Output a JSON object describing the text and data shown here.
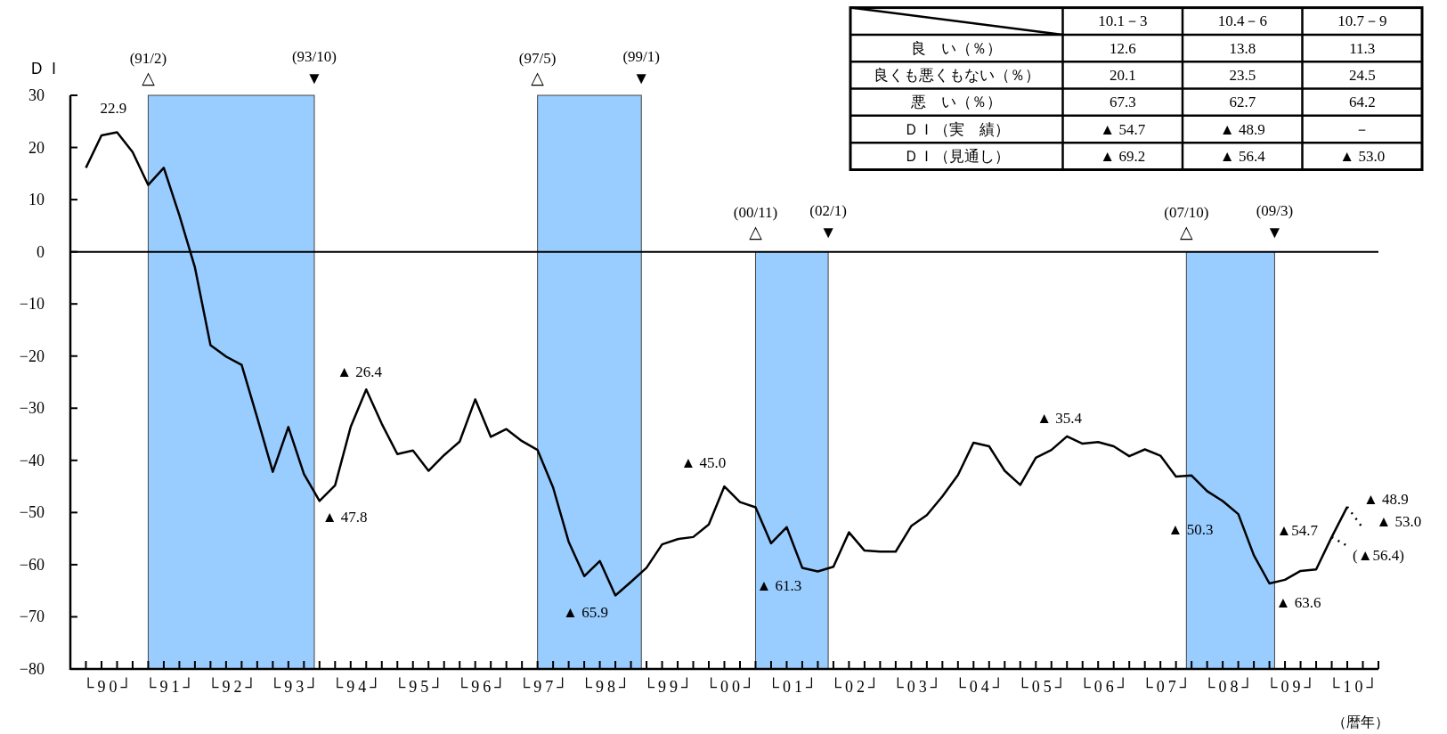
{
  "chart_data": [
    {
      "type": "line",
      "ylabel": "ＤＩ",
      "xlabel": "（暦年）",
      "x": [
        "1990-02",
        "1990-05",
        "1990-08",
        "1990-11",
        "1991-02",
        "1991-05",
        "1991-08",
        "1991-11",
        "1992-02",
        "1992-05",
        "1992-08",
        "1992-11",
        "1993-02",
        "1993-05",
        "1993-08",
        "1993-11",
        "1994-02",
        "1994-05",
        "1994-08",
        "1994-11",
        "1995-02",
        "1995-05",
        "1995-08",
        "1995-11",
        "1996-02",
        "1996-05",
        "1996-08",
        "1996-11",
        "1997-02",
        "1997-05",
        "1997-08",
        "1997-11",
        "1998-02",
        "1998-05",
        "1998-08",
        "1998-11",
        "1999-02",
        "1999-05",
        "1999-08",
        "1999-11",
        "2000-02",
        "2000-05",
        "2000-08",
        "2000-11",
        "2001-02",
        "2001-05",
        "2001-08",
        "2001-11",
        "2002-02",
        "2002-05",
        "2002-08",
        "2002-11",
        "2003-02",
        "2003-05",
        "2003-08",
        "2003-11",
        "2004-02",
        "2004-05",
        "2004-08",
        "2004-11",
        "2005-02",
        "2005-05",
        "2005-08",
        "2005-11",
        "2006-02",
        "2006-05",
        "2006-08",
        "2006-11",
        "2007-02",
        "2007-05",
        "2007-08",
        "2007-11",
        "2008-02",
        "2008-05",
        "2008-08",
        "2008-11",
        "2009-02",
        "2009-05",
        "2009-08",
        "2009-11",
        "2010-02",
        "2010-05"
      ],
      "series": [
        {
          "color": "#000000",
          "line_style": "solid",
          "values": [
            16.1,
            22.3,
            22.9,
            19.1,
            12.8,
            16.1,
            7.0,
            -3.0,
            -17.9,
            -20.1,
            -21.7,
            -31.8,
            -42.2,
            -33.6,
            -42.6,
            -47.8,
            -44.8,
            -33.6,
            -26.4,
            -33.0,
            -38.8,
            -38.1,
            -42.0,
            -39.0,
            -36.4,
            -28.3,
            -35.5,
            -34.0,
            -36.3,
            -38.0,
            -45.2,
            -55.6,
            -62.2,
            -59.3,
            -65.9,
            -63.3,
            -60.6,
            -56.1,
            -55.1,
            -54.7,
            -52.3,
            -45.0,
            -48.0,
            -49.0,
            -55.9,
            -52.8,
            -60.6,
            -61.3,
            -60.4,
            -53.8,
            -57.3,
            -57.5,
            -57.5,
            -52.6,
            -50.5,
            -46.9,
            -42.8,
            -36.6,
            -37.3,
            -42.0,
            -44.7,
            -39.5,
            -38.0,
            -35.4,
            -36.8,
            -36.5,
            -37.3,
            -39.2,
            -37.9,
            -39.1,
            -43.1,
            -42.9,
            -45.9,
            -47.8,
            -50.3,
            -58.2,
            -63.6,
            -62.9,
            -61.2,
            -60.9,
            -54.7,
            -48.9
          ]
        },
        {
          "type": "line",
          "color": "#000000",
          "line_style": "dotted",
          "x": [
            "2010-02",
            "2010-05"
          ],
          "values": [
            -54.7,
            -56.4
          ]
        },
        {
          "type": "line",
          "color": "#000000",
          "line_style": "dotted",
          "x": [
            "2010-05",
            "2010-08"
          ],
          "values": [
            -48.9,
            -53.0
          ]
        }
      ],
      "xlim": [
        "1989-11",
        "2010-11"
      ],
      "ylim": [
        -80,
        30
      ],
      "yticks": [
        -80,
        -70,
        -60,
        -50,
        -40,
        -30,
        -20,
        -10,
        0,
        10,
        20,
        30
      ],
      "xticks": [
        {
          "value": "1990-02",
          "label": null
        },
        {
          "value": "1990-05",
          "label": null
        },
        {
          "value": "1990-06-15",
          "label": "└90┘"
        },
        {
          "value": "1990-08",
          "label": null
        },
        {
          "value": "1990-11",
          "label": null
        },
        {
          "value": "1991-02",
          "label": null
        },
        {
          "value": "1991-05",
          "label": null
        },
        {
          "value": "1991-06-15",
          "label": "└91┘"
        },
        {
          "value": "1991-08",
          "label": null
        },
        {
          "value": "1991-11",
          "label": null
        },
        {
          "value": "1992-02",
          "label": null
        },
        {
          "value": "1992-05",
          "label": null
        },
        {
          "value": "1992-06-15",
          "label": "└92┘"
        },
        {
          "value": "1992-08",
          "label": null
        },
        {
          "value": "1992-11",
          "label": null
        },
        {
          "value": "1993-02",
          "label": null
        },
        {
          "value": "1993-05",
          "label": null
        },
        {
          "value": "1993-06-15",
          "label": "└93┘"
        },
        {
          "value": "1993-08",
          "label": null
        },
        {
          "value": "1993-11",
          "label": null
        },
        {
          "value": "1994-02",
          "label": null
        },
        {
          "value": "1994-05",
          "label": null
        },
        {
          "value": "1994-06-15",
          "label": "└94┘"
        },
        {
          "value": "1994-08",
          "label": null
        },
        {
          "value": "1994-11",
          "label": null
        },
        {
          "value": "1995-02",
          "label": null
        },
        {
          "value": "1995-05",
          "label": null
        },
        {
          "value": "1995-06-15",
          "label": "└95┘"
        },
        {
          "value": "1995-08",
          "label": null
        },
        {
          "value": "1995-11",
          "label": null
        },
        {
          "value": "1996-02",
          "label": null
        },
        {
          "value": "1996-05",
          "label": null
        },
        {
          "value": "1996-06-15",
          "label": "└96┘"
        },
        {
          "value": "1996-08",
          "label": null
        },
        {
          "value": "1996-11",
          "label": null
        },
        {
          "value": "1997-02",
          "label": null
        },
        {
          "value": "1997-05",
          "label": null
        },
        {
          "value": "1997-06-15",
          "label": "└97┘"
        },
        {
          "value": "1997-08",
          "label": null
        },
        {
          "value": "1997-11",
          "label": null
        },
        {
          "value": "1998-02",
          "label": null
        },
        {
          "value": "1998-05",
          "label": null
        },
        {
          "value": "1998-06-15",
          "label": "└98┘"
        },
        {
          "value": "1998-08",
          "label": null
        },
        {
          "value": "1998-11",
          "label": null
        },
        {
          "value": "1999-02",
          "label": null
        },
        {
          "value": "1999-05",
          "label": null
        },
        {
          "value": "1999-06-15",
          "label": "└99┘"
        },
        {
          "value": "1999-08",
          "label": null
        },
        {
          "value": "1999-11",
          "label": null
        },
        {
          "value": "2000-02",
          "label": null
        },
        {
          "value": "2000-05",
          "label": null
        },
        {
          "value": "2000-06-15",
          "label": "└00┘"
        },
        {
          "value": "2000-08",
          "label": null
        },
        {
          "value": "2000-11",
          "label": null
        },
        {
          "value": "2001-02",
          "label": null
        },
        {
          "value": "2001-05",
          "label": null
        },
        {
          "value": "2001-06-15",
          "label": "└01┘"
        },
        {
          "value": "2001-08",
          "label": null
        },
        {
          "value": "2001-11",
          "label": null
        },
        {
          "value": "2002-02",
          "label": null
        },
        {
          "value": "2002-05",
          "label": null
        },
        {
          "value": "2002-06-15",
          "label": "└02┘"
        },
        {
          "value": "2002-08",
          "label": null
        },
        {
          "value": "2002-11",
          "label": null
        },
        {
          "value": "2003-02",
          "label": null
        },
        {
          "value": "2003-05",
          "label": null
        },
        {
          "value": "2003-06-15",
          "label": "└03┘"
        },
        {
          "value": "2003-08",
          "label": null
        },
        {
          "value": "2003-11",
          "label": null
        },
        {
          "value": "2004-02",
          "label": null
        },
        {
          "value": "2004-05",
          "label": null
        },
        {
          "value": "2004-06-15",
          "label": "└04┘"
        },
        {
          "value": "2004-08",
          "label": null
        },
        {
          "value": "2004-11",
          "label": null
        },
        {
          "value": "2005-02",
          "label": null
        },
        {
          "value": "2005-05",
          "label": null
        },
        {
          "value": "2005-06-15",
          "label": "└05┘"
        },
        {
          "value": "2005-08",
          "label": null
        },
        {
          "value": "2005-11",
          "label": null
        },
        {
          "value": "2006-02",
          "label": null
        },
        {
          "value": "2006-05",
          "label": null
        },
        {
          "value": "2006-06-15",
          "label": "└06┘"
        },
        {
          "value": "2006-08",
          "label": null
        },
        {
          "value": "2006-11",
          "label": null
        },
        {
          "value": "2007-02",
          "label": null
        },
        {
          "value": "2007-05",
          "label": null
        },
        {
          "value": "2007-06-15",
          "label": "└07┘"
        },
        {
          "value": "2007-08",
          "label": null
        },
        {
          "value": "2007-11",
          "label": null
        },
        {
          "value": "2008-02",
          "label": null
        },
        {
          "value": "2008-05",
          "label": null
        },
        {
          "value": "2008-06-15",
          "label": "└08┘"
        },
        {
          "value": "2008-08",
          "label": null
        },
        {
          "value": "2008-11",
          "label": null
        },
        {
          "value": "2009-02",
          "label": null
        },
        {
          "value": "2009-05",
          "label": null
        },
        {
          "value": "2009-06-15",
          "label": "└09┘"
        },
        {
          "value": "2009-08",
          "label": null
        },
        {
          "value": "2009-11",
          "label": null
        },
        {
          "value": "2010-02",
          "label": null
        },
        {
          "value": "2010-05",
          "label": null
        },
        {
          "value": "2010-06-15",
          "label": "└10┘"
        },
        {
          "value": "2010-08",
          "label": null
        },
        {
          "value": "2010-11",
          "label": null
        }
      ],
      "ref_lines": [
        {
          "axis": "y",
          "value": 0,
          "color": "#000000"
        }
      ],
      "bands": [
        {
          "axis": "x",
          "from": "1991-02",
          "to": "1993-10",
          "color": "#99ccff"
        },
        {
          "axis": "x",
          "from": "1997-05",
          "to": "1999-01",
          "color": "#99ccff"
        },
        {
          "axis": "x",
          "from": "2000-11",
          "to": "2002-01",
          "color": "#99ccff"
        },
        {
          "axis": "x",
          "from": "2007-10",
          "to": "2009-03",
          "color": "#99ccff"
        }
      ],
      "annotations": [
        {
          "text": "(91/2)\n△",
          "x": "1991-02",
          "y": 30
        },
        {
          "text": "(93/10)\n▼",
          "x": "1993-10",
          "y": 30
        },
        {
          "text": "(97/5)\n△",
          "x": "1997-05",
          "y": 30
        },
        {
          "text": "(99/1)\n▼",
          "x": "1999-01",
          "y": 30
        },
        {
          "text": "(00/11)\n△",
          "x": "2000-11",
          "y": 0
        },
        {
          "text": "(02/1)\n▼",
          "x": "2002-01",
          "y": 0
        },
        {
          "text": "(07/10)\n△",
          "x": "2007-10",
          "y": 0
        },
        {
          "text": "(09/3)\n▼",
          "x": "2009-03",
          "y": 0
        },
        {
          "text": "22.9",
          "x": "1990-08",
          "y": 22.9
        },
        {
          "text": "▲ 47.8",
          "x": "1993-11",
          "y": -47.8
        },
        {
          "text": "▲ 26.4",
          "x": "1994-08",
          "y": -26.4
        },
        {
          "text": "▲ 65.9",
          "x": "1998-08",
          "y": -65.9
        },
        {
          "text": "▲ 45.0",
          "x": "2000-05",
          "y": -45.0
        },
        {
          "text": "▲ 61.3",
          "x": "2001-11",
          "y": -61.3
        },
        {
          "text": "▲ 35.4",
          "x": "2005-11",
          "y": -35.4
        },
        {
          "text": "▲ 50.3",
          "x": "2008-08",
          "y": -50.3
        },
        {
          "text": "▲ 63.6",
          "x": "2009-02",
          "y": -63.6
        },
        {
          "text": "▲54.7",
          "x": "2010-02",
          "y": -54.7
        },
        {
          "text": "▲ 48.9",
          "x": "2010-05",
          "y": -48.9
        },
        {
          "text": "▲ 53.0",
          "x": "2010-08",
          "y": -53.0
        },
        {
          "text": "(▲56.4)",
          "x": "2010-05",
          "y": -56.4
        }
      ]
    },
    {
      "type": "other",
      "categories": [
        "10.1－3",
        "10.4－6",
        "10.7－9"
      ],
      "y_categories": [
        "良　い（％）",
        "良くも悪くもない（％）",
        "悪　い（％）",
        "ＤＩ（実　績）",
        "ＤＩ（見通し）"
      ],
      "cell_labels": [
        [
          "12.6",
          "13.8",
          "11.3"
        ],
        [
          "20.1",
          "23.5",
          "24.5"
        ],
        [
          "67.3",
          "62.7",
          "64.2"
        ],
        [
          "▲ 54.7",
          "▲ 48.9",
          "－"
        ],
        [
          "▲ 69.2",
          "▲ 56.4",
          "▲ 53.0"
        ]
      ]
    }
  ]
}
